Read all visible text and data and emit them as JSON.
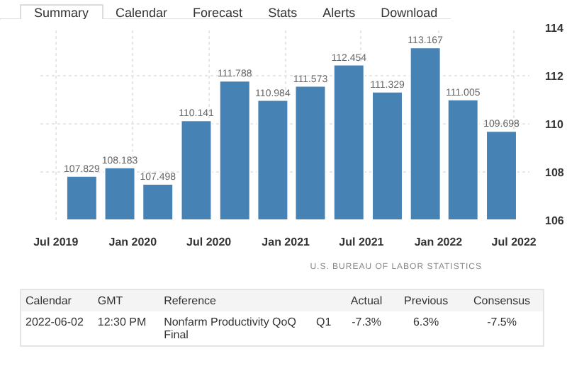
{
  "chart_data": {
    "type": "bar",
    "x": [
      "2019-09-01",
      "2019-12-01",
      "2020-03-01",
      "2020-06-01",
      "2020-09-01",
      "2020-12-01",
      "2021-03-01",
      "2021-06-01",
      "2021-09-01",
      "2021-12-01",
      "2022-03-01",
      "2022-06-01"
    ],
    "values": [
      107.829,
      108.183,
      107.498,
      110.141,
      111.788,
      110.984,
      111.573,
      112.454,
      111.329,
      113.167,
      111.005,
      109.698
    ],
    "color": "#4682b4",
    "data_labels": true,
    "grid": true,
    "xlim": [
      "2019-05-25",
      "2022-08-07"
    ],
    "xticks": [
      {
        "value": "2019-07-01",
        "label": "Jul 2019"
      },
      {
        "value": "2020-01-01",
        "label": "Jan 2020"
      },
      {
        "value": "2020-07-01",
        "label": "Jul 2020"
      },
      {
        "value": "2021-01-01",
        "label": "Jan 2021"
      },
      {
        "value": "2021-07-01",
        "label": "Jul 2021"
      },
      {
        "value": "2022-01-01",
        "label": "Jan 2022"
      },
      {
        "value": "2022-07-01",
        "label": "Jul 2022"
      }
    ],
    "ylim": [
      106,
      114
    ],
    "yticks": [
      106,
      108,
      110,
      112,
      114
    ],
    "annotations": [
      "U.S. BUREAU OF LABOR STATISTICS",
      "Summary",
      "Calendar",
      "Forecast",
      "Stats",
      "Alerts",
      "Download",
      "Calendar",
      "GMT",
      "Reference",
      null,
      "Actual",
      "Previous",
      "Consensus",
      "2022-06-02",
      "12:30 PM",
      "Nonfarm Productivity QoQ Final",
      "Q1",
      "-7.3%",
      "6.3%",
      "-7.5%"
    ]
  }
}
